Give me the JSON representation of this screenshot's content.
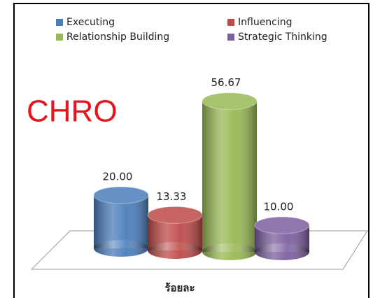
{
  "chart_data": {
    "type": "bar",
    "annotation": "CHRO",
    "x_label": "ร้อยละ",
    "categories": [
      "Executing",
      "Influencing",
      "Relationship Building",
      "Strategic Thinking"
    ],
    "values": [
      20,
      13.33,
      56.67,
      10
    ],
    "value_labels": [
      "20.00",
      "13.33",
      "56.67",
      "10.00"
    ],
    "colors": [
      "#4a7ebb",
      "#be4b48",
      "#98b954",
      "#7d60a0"
    ],
    "legend": "top"
  }
}
